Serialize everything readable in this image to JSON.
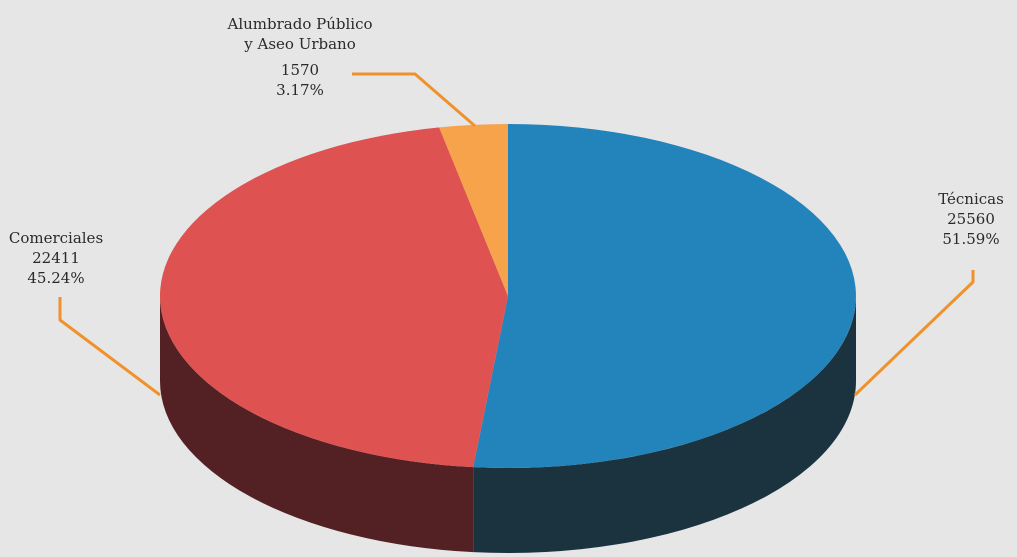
{
  "chart_data": {
    "type": "pie",
    "title": "",
    "slices": [
      {
        "label": "Técnicas",
        "value": 25560,
        "percent": "51.59%",
        "color": "#2383bb",
        "side_color": "#1b333f"
      },
      {
        "label": "Comerciales",
        "value": 22411,
        "percent": "45.24%",
        "color": "#de5351",
        "side_color": "#532124"
      },
      {
        "label": "Alumbrado Público y Aseo Urbano",
        "label_lines": [
          "Alumbrado Público",
          "y Aseo Urbano"
        ],
        "value": 1570,
        "percent": "3.17%",
        "color": "#f6a34c",
        "side_color": "#8c5a25"
      }
    ],
    "three_d": true,
    "leader_line_color": "#f0922c",
    "background": "#e6e6e6"
  }
}
